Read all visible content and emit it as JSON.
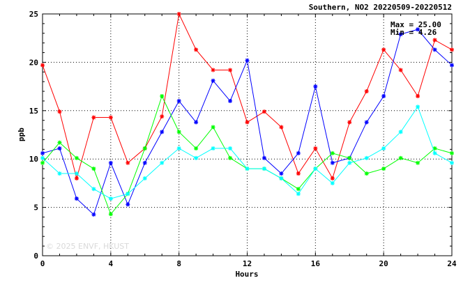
{
  "chart_data": {
    "type": "line",
    "title": "Southern, NO2 20220509-20220512",
    "xlabel": "Hours",
    "ylabel": "ppb",
    "xlim": [
      0,
      24
    ],
    "ylim": [
      0,
      25
    ],
    "xticks": [
      0,
      4,
      8,
      12,
      16,
      20,
      24
    ],
    "yticks": [
      0,
      5,
      10,
      15,
      20,
      25
    ],
    "grid": true,
    "annotations": [
      "Max = 25.00",
      "Min = 4.26"
    ],
    "watermark": "© 2025 ENVF, HKUST",
    "x": [
      0,
      1,
      2,
      3,
      4,
      5,
      6,
      7,
      8,
      9,
      10,
      11,
      12,
      13,
      14,
      15,
      16,
      17,
      18,
      19,
      20,
      21,
      22,
      23,
      24
    ],
    "series": [
      {
        "color": "#ff0000",
        "marker": "star",
        "values": [
          19.7,
          14.9,
          8.0,
          14.3,
          14.3,
          9.6,
          11.1,
          14.4,
          25.0,
          21.3,
          19.2,
          19.2,
          13.8,
          14.9,
          13.3,
          8.5,
          11.1,
          8.0,
          13.8,
          17.0,
          21.3,
          19.2,
          16.5,
          22.3,
          21.3
        ]
      },
      {
        "color": "#0000ff",
        "marker": "star",
        "values": [
          10.6,
          11.1,
          5.9,
          4.26,
          9.6,
          5.3,
          9.6,
          12.8,
          16.0,
          13.8,
          18.1,
          16.0,
          20.2,
          10.1,
          8.5,
          10.6,
          17.5,
          9.6,
          10.1,
          13.8,
          16.5,
          22.9,
          23.4,
          21.3,
          19.7
        ]
      },
      {
        "color": "#00ff00",
        "marker": "star",
        "values": [
          9.6,
          11.7,
          10.1,
          9.0,
          4.3,
          6.4,
          11.1,
          16.5,
          12.8,
          11.1,
          13.3,
          10.1,
          9.0,
          9.0,
          8.0,
          6.9,
          9.0,
          10.6,
          10.1,
          8.5,
          9.0,
          10.1,
          9.6,
          11.1,
          10.6
        ]
      },
      {
        "color": "#00ffff",
        "marker": "star",
        "values": [
          10.1,
          8.5,
          8.5,
          6.9,
          5.9,
          6.4,
          8.0,
          9.6,
          11.1,
          10.1,
          11.1,
          11.1,
          9.0,
          9.0,
          8.0,
          6.4,
          9.0,
          7.5,
          9.6,
          10.1,
          11.1,
          12.8,
          15.4,
          10.6,
          9.6
        ]
      }
    ]
  }
}
